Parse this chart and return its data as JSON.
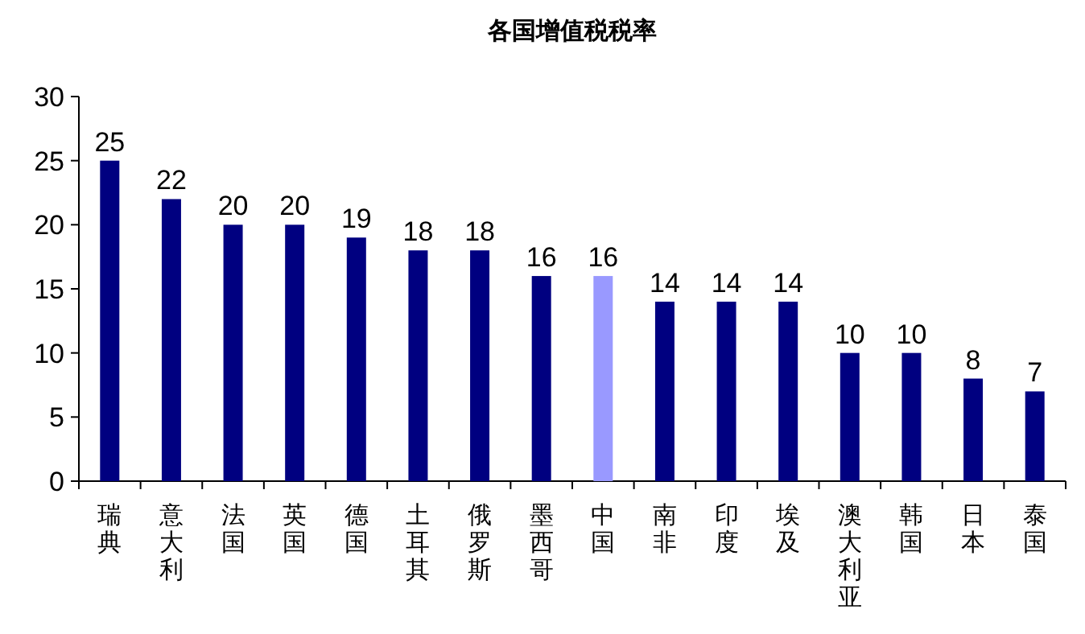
{
  "chart_data": {
    "type": "bar",
    "title": "各国增值税税率",
    "categories": [
      "瑞典",
      "意大利",
      "法国",
      "英国",
      "德国",
      "土耳其",
      "俄罗斯",
      "墨西哥",
      "中国",
      "南非",
      "印度",
      "埃及",
      "澳大利亚",
      "韩国",
      "日本",
      "泰国"
    ],
    "values": [
      25,
      22,
      20,
      20,
      19,
      18,
      18,
      16,
      16,
      14,
      14,
      14,
      10,
      10,
      8,
      7
    ],
    "colors": [
      "#000080",
      "#000080",
      "#000080",
      "#000080",
      "#000080",
      "#000080",
      "#000080",
      "#000080",
      "#9999ff",
      "#000080",
      "#000080",
      "#000080",
      "#000080",
      "#000080",
      "#000080",
      "#000080"
    ],
    "ylim": [
      0,
      30
    ],
    "yticks": [
      0,
      5,
      10,
      15,
      20,
      25,
      30
    ],
    "data_labels": true
  }
}
